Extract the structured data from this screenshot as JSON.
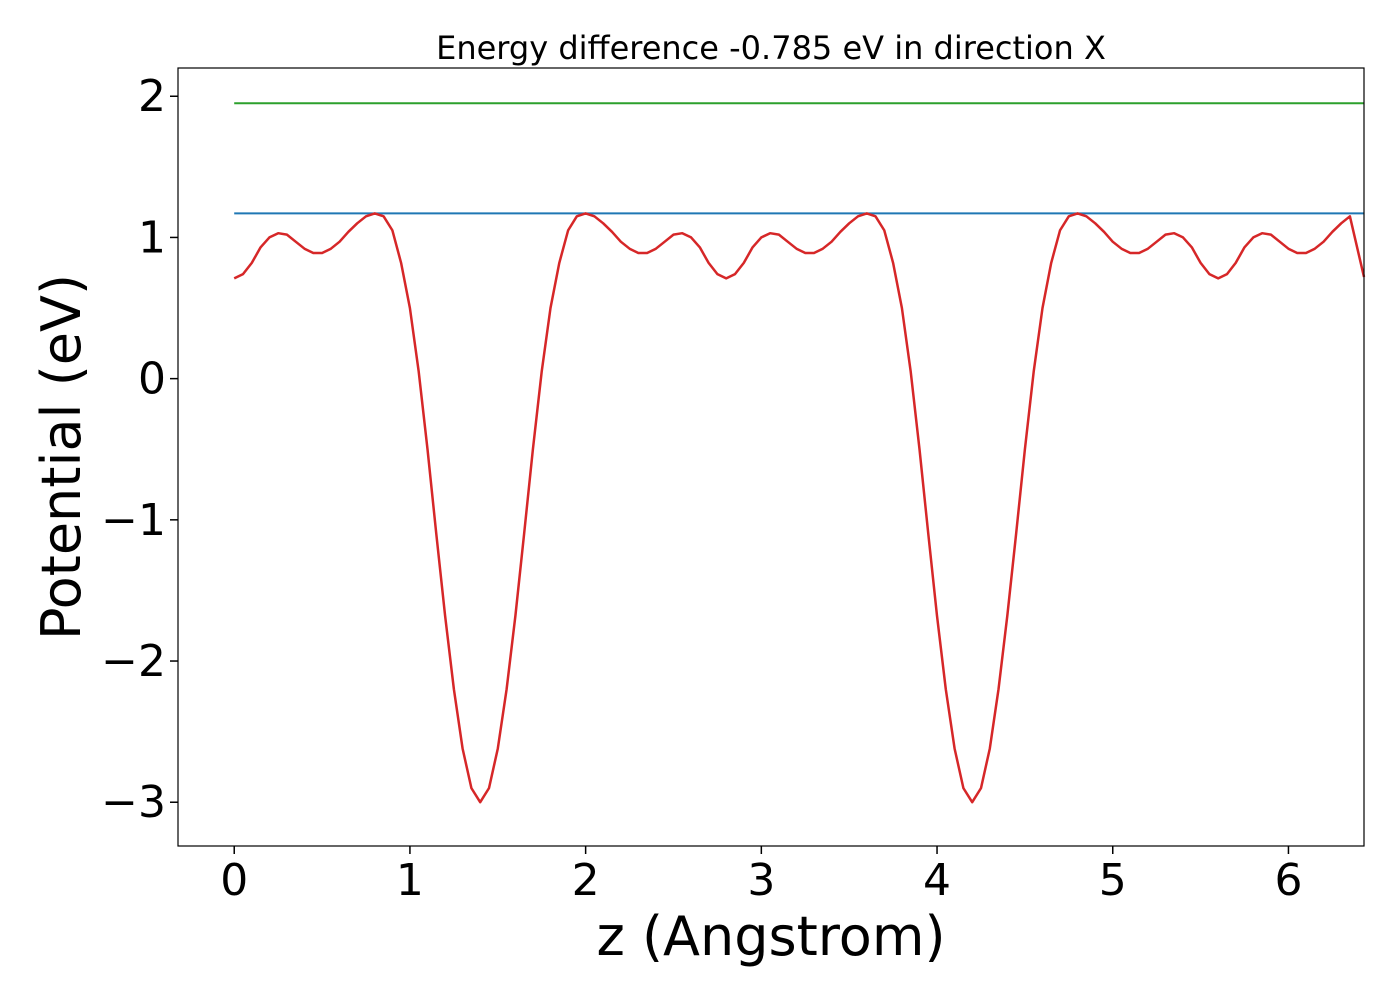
{
  "chart_data": {
    "type": "line",
    "title": "Energy difference -0.785 eV in direction X",
    "xlabel": "z (Angstrom)",
    "ylabel": "Potential (eV)",
    "xlim": [
      -0.32,
      6.43
    ],
    "ylim": [
      -3.31,
      2.2
    ],
    "grid": false,
    "legend": "none",
    "x_ticks": [
      0,
      1,
      2,
      3,
      4,
      5,
      6
    ],
    "x_tick_labels": [
      "0",
      "1",
      "2",
      "3",
      "4",
      "5",
      "6"
    ],
    "y_ticks": [
      -3,
      -2,
      -1,
      0,
      1,
      2
    ],
    "y_tick_labels": [
      "−3",
      "−2",
      "−1",
      "0",
      "1",
      "2"
    ],
    "series": [
      {
        "color": "#2ca02c",
        "x": [
          0,
          6.43
        ],
        "y": [
          1.95,
          1.95
        ]
      },
      {
        "color": "#1f77b4",
        "x": [
          0,
          6.43
        ],
        "y": [
          1.17,
          1.17
        ]
      },
      {
        "color": "#d62728",
        "x": [
          0,
          0.05,
          0.1,
          0.15,
          0.2,
          0.25,
          0.3,
          0.35,
          0.4,
          0.45,
          0.5,
          0.55,
          0.6,
          0.65,
          0.7,
          0.75,
          0.8,
          0.85,
          0.9,
          0.95,
          1.0,
          1.05,
          1.1,
          1.15,
          1.2,
          1.25,
          1.3,
          1.35,
          1.4,
          1.45,
          1.5,
          1.55,
          1.6,
          1.65,
          1.7,
          1.75,
          1.8,
          1.85,
          1.9,
          1.95,
          2.0,
          2.05,
          2.1,
          2.15,
          2.2,
          2.25,
          2.3,
          2.35,
          2.4,
          2.45,
          2.5,
          2.55,
          2.6,
          2.65,
          2.7,
          2.75,
          2.8,
          2.85,
          2.9,
          2.95,
          3.0,
          3.05,
          3.1,
          3.15,
          3.2,
          3.25,
          3.3,
          3.35,
          3.4,
          3.45,
          3.5,
          3.55,
          3.6,
          3.65,
          3.7,
          3.75,
          3.8,
          3.85,
          3.9,
          3.95,
          4.0,
          4.05,
          4.1,
          4.15,
          4.2,
          4.25,
          4.3,
          4.35,
          4.4,
          4.45,
          4.5,
          4.55,
          4.6,
          4.65,
          4.7,
          4.75,
          4.8,
          4.85,
          4.9,
          4.95,
          5.0,
          5.05,
          5.1,
          5.15,
          5.2,
          5.25,
          5.3,
          5.35,
          5.4,
          5.45,
          5.5,
          5.55,
          5.6,
          5.65,
          5.7,
          5.75,
          5.8,
          5.85,
          5.9,
          5.95,
          6.0,
          6.05,
          6.1,
          6.15,
          6.2,
          6.25,
          6.3,
          6.35,
          6.43
        ],
        "y": [
          0.71,
          0.74,
          0.82,
          0.93,
          1.0,
          1.03,
          1.02,
          0.97,
          0.92,
          0.89,
          0.89,
          0.92,
          0.97,
          1.04,
          1.1,
          1.15,
          1.17,
          1.15,
          1.05,
          0.82,
          0.5,
          0.05,
          -0.5,
          -1.1,
          -1.68,
          -2.2,
          -2.62,
          -2.9,
          -3.0,
          -2.9,
          -2.62,
          -2.2,
          -1.68,
          -1.1,
          -0.5,
          0.05,
          0.5,
          0.82,
          1.05,
          1.15,
          1.17,
          1.15,
          1.1,
          1.04,
          0.97,
          0.92,
          0.89,
          0.89,
          0.92,
          0.97,
          1.02,
          1.03,
          1.0,
          0.93,
          0.82,
          0.74,
          0.71,
          0.74,
          0.82,
          0.93,
          1.0,
          1.03,
          1.02,
          0.97,
          0.92,
          0.89,
          0.89,
          0.92,
          0.97,
          1.04,
          1.1,
          1.15,
          1.17,
          1.15,
          1.05,
          0.82,
          0.5,
          0.05,
          -0.5,
          -1.1,
          -1.68,
          -2.2,
          -2.62,
          -2.9,
          -3.0,
          -2.9,
          -2.62,
          -2.2,
          -1.68,
          -1.1,
          -0.5,
          0.05,
          0.5,
          0.82,
          1.05,
          1.15,
          1.17,
          1.15,
          1.1,
          1.04,
          0.97,
          0.92,
          0.89,
          0.89,
          0.92,
          0.97,
          1.02,
          1.03,
          1.0,
          0.93,
          0.82,
          0.74,
          0.71,
          0.74,
          0.82,
          0.93,
          1.0,
          1.03,
          1.02,
          0.97,
          0.92,
          0.89,
          0.89,
          0.92,
          0.97,
          1.04,
          1.1,
          1.15,
          0.72
        ]
      }
    ]
  }
}
